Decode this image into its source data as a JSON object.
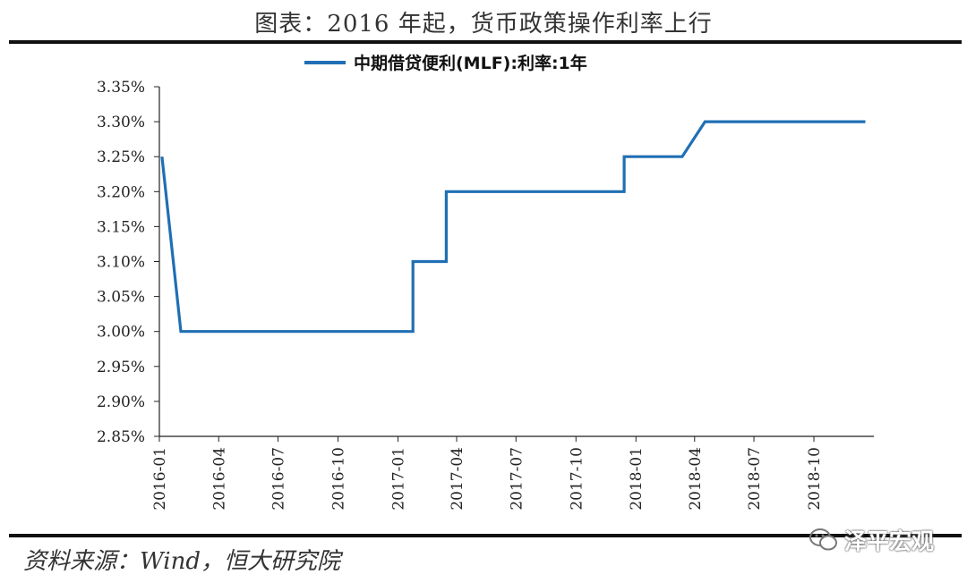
{
  "title": "图表：2016 年起，货币政策操作利率上行",
  "source": "资料来源：Wind，恒大研究院",
  "watermark": {
    "text": "泽平宏观",
    "icon": "wechat-icon"
  },
  "colors": {
    "line": "#1f6fb4",
    "axis": "#222222",
    "rule": "#111111"
  },
  "chart_data": {
    "type": "line",
    "series": [
      {
        "name": "中期借贷便利(MLF):利率:1年",
        "color": "#1f6fb4",
        "points": [
          [
            "2016-01-05",
            3.25
          ],
          [
            "2016-02-03",
            3.0
          ],
          [
            "2017-01-24",
            3.0
          ],
          [
            "2017-01-24",
            3.1
          ],
          [
            "2017-03-16",
            3.1
          ],
          [
            "2017-03-16",
            3.2
          ],
          [
            "2017-12-14",
            3.2
          ],
          [
            "2017-12-14",
            3.25
          ],
          [
            "2018-03-13",
            3.25
          ],
          [
            "2018-04-17",
            3.3
          ],
          [
            "2018-12-19",
            3.3
          ]
        ]
      }
    ],
    "x_ticks": [
      "2016-01",
      "2016-04",
      "2016-07",
      "2016-10",
      "2017-01",
      "2017-04",
      "2017-07",
      "2017-10",
      "2018-01",
      "2018-04",
      "2018-07",
      "2018-10"
    ],
    "y_ticks": [
      "2.85%",
      "2.90%",
      "2.95%",
      "3.00%",
      "3.05%",
      "3.10%",
      "3.15%",
      "3.20%",
      "3.25%",
      "3.30%",
      "3.35%"
    ],
    "ylim": [
      2.85,
      3.35
    ],
    "xlim": [
      "2016-01-01",
      "2019-01-01"
    ],
    "legend": {
      "position": "top-center"
    },
    "grid": false
  }
}
